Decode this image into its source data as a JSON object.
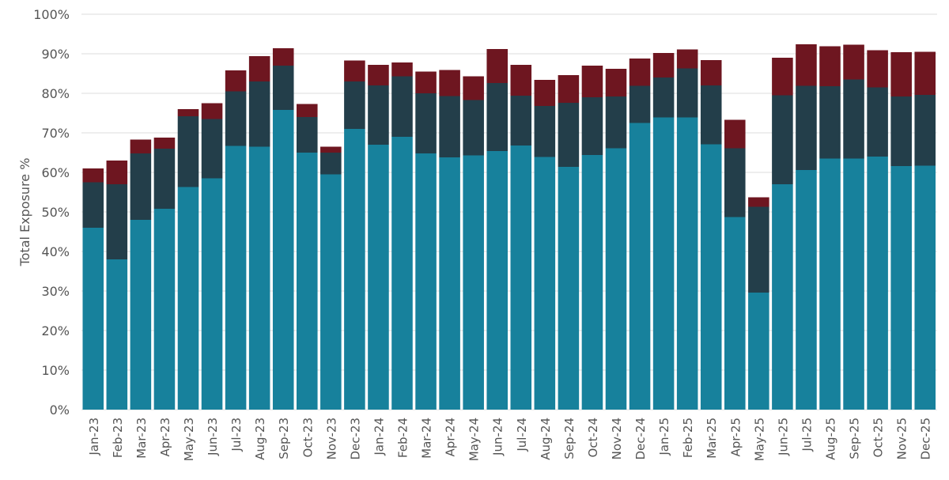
{
  "chart_data": {
    "type": "bar",
    "stacked": true,
    "title": "",
    "xlabel": "",
    "ylabel": "Total Exposure %",
    "ylim": [
      0,
      100
    ],
    "yticks": [
      "0%",
      "10%",
      "20%",
      "30%",
      "40%",
      "50%",
      "60%",
      "70%",
      "80%",
      "90%",
      "100%"
    ],
    "grid": true,
    "legend": "none",
    "categories": [
      "Jan-23",
      "Feb-23",
      "Mar-23",
      "Apr-23",
      "May-23",
      "Jun-23",
      "Jul-23",
      "Aug-23",
      "Sep-23",
      "Oct-23",
      "Nov-23",
      "Dec-23",
      "Jan-24",
      "Feb-24",
      "Mar-24",
      "Apr-24",
      "May-24",
      "Jun-24",
      "Jul-24",
      "Aug-24",
      "Sep-24",
      "Oct-24",
      "Nov-24",
      "Dec-24",
      "Jan-25",
      "Feb-25",
      "Mar-25",
      "Apr-25",
      "May-25",
      "Jun-25",
      "Jul-25",
      "Aug-25",
      "Sep-25",
      "Oct-25",
      "Nov-25",
      "Dec-25"
    ],
    "series": [
      {
        "color": "#17819c",
        "values": [
          46,
          38,
          48,
          50.8,
          56.3,
          58.5,
          66.7,
          66.5,
          75.8,
          65,
          59.5,
          71,
          67,
          69,
          64.8,
          63.8,
          64.3,
          65.4,
          66.8,
          63.9,
          61.4,
          64.4,
          66.1,
          72.5,
          73.9,
          73.9,
          67.1,
          48.7,
          29.6,
          57,
          60.6,
          63.5,
          63.5,
          64,
          61.6,
          61.7
        ]
      },
      {
        "color": "#233e4a",
        "values": [
          11.5,
          19,
          16.8,
          15.2,
          17.9,
          15,
          13.8,
          16.5,
          11.2,
          9,
          5.5,
          12,
          15,
          15.3,
          15.2,
          15.5,
          14,
          17.2,
          12.6,
          12.9,
          16.2,
          14.6,
          13.1,
          9.4,
          10.1,
          12.4,
          14.9,
          17.4,
          21.7,
          22.5,
          21.3,
          18.3,
          20,
          17.5,
          17.6,
          17.9
        ]
      },
      {
        "color": "#6e1620",
        "values": [
          3.5,
          6,
          3.5,
          2.8,
          1.8,
          4,
          5.3,
          6.4,
          4.4,
          3.3,
          1.5,
          5.3,
          5.2,
          3.5,
          5.5,
          6.6,
          6,
          8.6,
          7.8,
          6.6,
          7,
          8,
          7,
          6.9,
          6.2,
          4.8,
          6.4,
          7.2,
          2.4,
          9.5,
          10.5,
          10.1,
          8.8,
          9.4,
          11.2,
          10.9
        ]
      }
    ]
  }
}
